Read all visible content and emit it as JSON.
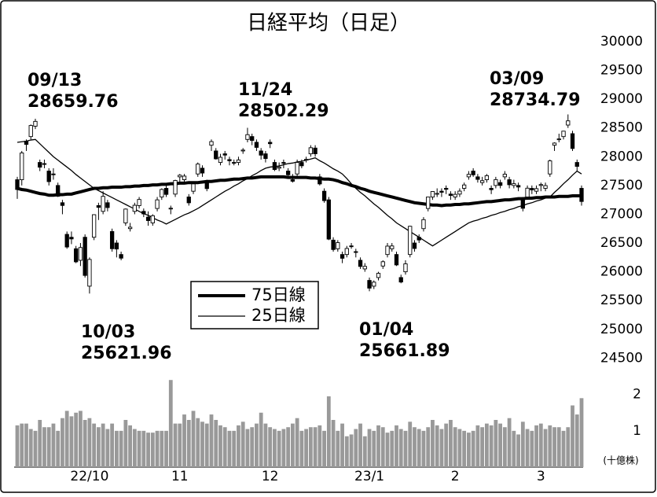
{
  "chart_data": {
    "type": "candlestick",
    "title": "日経平均（日足）",
    "categories": [
      null,
      null,
      null,
      null,
      null,
      null,
      null,
      null,
      null,
      null,
      null,
      null,
      null,
      null,
      null,
      null,
      "22/10",
      null,
      null,
      null,
      null,
      null,
      null,
      null,
      null,
      null,
      null,
      null,
      null,
      null,
      null,
      null,
      null,
      null,
      null,
      null,
      "11",
      null,
      null,
      null,
      null,
      null,
      null,
      null,
      null,
      null,
      null,
      null,
      null,
      null,
      null,
      null,
      null,
      null,
      null,
      null,
      "12",
      null,
      null,
      null,
      null,
      null,
      null,
      null,
      null,
      null,
      null,
      null,
      null,
      null,
      null,
      null,
      null,
      null,
      null,
      null,
      null,
      null,
      "23/1",
      null,
      null,
      null,
      null,
      null,
      null,
      null,
      null,
      null,
      null,
      null,
      null,
      null,
      null,
      null,
      null,
      null,
      null,
      "2",
      null,
      null,
      null,
      null,
      null,
      null,
      null,
      null,
      null,
      null,
      null,
      null,
      null,
      null,
      null,
      null,
      null,
      null,
      "3",
      null,
      null,
      null,
      null,
      null,
      null,
      null,
      null,
      null
    ],
    "open": [
      27600,
      27600,
      28270,
      28350,
      28530,
      27900,
      27880,
      27750,
      27700,
      27500,
      27200,
      26650,
      26600,
      26400,
      26200,
      26600,
      25750,
      26600,
      27150,
      27050,
      27200,
      26700,
      26500,
      26300,
      26850,
      26750,
      27050,
      27150,
      27050,
      26950,
      26850,
      27100,
      27300,
      27450,
      27100,
      27350,
      27650,
      27600,
      27300,
      27400,
      27700,
      27800,
      27550,
      28200,
      28100,
      27900,
      28050,
      27950,
      27900,
      27900,
      28100,
      28300,
      28350,
      28250,
      28100,
      28050,
      28250,
      27900,
      27800,
      27900,
      27750,
      27600,
      27700,
      27900,
      27950,
      28050,
      28150,
      27650,
      27400,
      27250,
      26550,
      26400,
      26300,
      26300,
      26450,
      26350,
      26200,
      26050,
      25850,
      25750,
      25900,
      26100,
      26300,
      26400,
      26300,
      25900,
      26000,
      26300,
      26500,
      26600,
      26750,
      27100,
      27300,
      27350,
      27400,
      27450,
      27350,
      27300,
      27350,
      27450,
      27650,
      27750,
      27650,
      27550,
      27600,
      27450,
      27500,
      27550,
      27650,
      27600,
      27500,
      27500,
      27250,
      27300,
      27450,
      27400,
      27500,
      27450,
      27700,
      28200,
      28300,
      28350,
      28550,
      28400,
      27900,
      27450
    ],
    "high": [
      27650,
      28100,
      28300,
      28560,
      28659.76,
      27950,
      27950,
      27800,
      27800,
      27550,
      27250,
      26700,
      26700,
      26450,
      26500,
      26650,
      26250,
      27000,
      27200,
      27400,
      27250,
      26750,
      26550,
      26350,
      27100,
      26850,
      27200,
      27300,
      27100,
      27050,
      27000,
      27300,
      27450,
      27500,
      27150,
      27600,
      27700,
      27700,
      27350,
      27550,
      27900,
      27850,
      27600,
      28300,
      28150,
      28050,
      28100,
      28000,
      27950,
      28000,
      28150,
      28502.29,
      28400,
      28300,
      28150,
      28100,
      28300,
      27950,
      27900,
      27950,
      27800,
      27700,
      27950,
      27950,
      28000,
      28200,
      28200,
      27700,
      27450,
      27300,
      26600,
      26550,
      26350,
      26450,
      26500,
      26400,
      26250,
      26150,
      25900,
      25850,
      26000,
      26200,
      26500,
      26500,
      26350,
      25950,
      26200,
      26800,
      26550,
      26650,
      26950,
      27300,
      27400,
      27450,
      27450,
      27500,
      27400,
      27400,
      27450,
      27550,
      27750,
      27800,
      27700,
      27650,
      27700,
      27500,
      27650,
      27600,
      27750,
      27650,
      27600,
      27550,
      27300,
      27500,
      27500,
      27500,
      27550,
      27550,
      27950,
      28250,
      28400,
      28450,
      28734.79,
      28450,
      27950,
      27500
    ],
    "low": [
      27268,
      27500,
      28100,
      28300,
      28480,
      27750,
      27800,
      27500,
      27600,
      27300,
      27000,
      26400,
      26480,
      26150,
      26100,
      25900,
      25621.96,
      26550,
      26900,
      27000,
      27050,
      26350,
      26250,
      26200,
      26800,
      26700,
      27000,
      27100,
      26950,
      26800,
      26800,
      27050,
      27250,
      27300,
      27000,
      27300,
      27550,
      27550,
      27150,
      27350,
      27650,
      27650,
      27400,
      28100,
      27950,
      27850,
      27950,
      27850,
      27850,
      27850,
      28050,
      28250,
      28200,
      28100,
      27950,
      27900,
      28150,
      27750,
      27750,
      27800,
      27650,
      27550,
      27650,
      27800,
      27900,
      28000,
      28000,
      27500,
      27200,
      26550,
      26350,
      26350,
      26150,
      26250,
      26400,
      26250,
      26050,
      26000,
      25661.89,
      25700,
      25850,
      26050,
      26250,
      26350,
      26100,
      25800,
      25950,
      26250,
      26350,
      26500,
      26700,
      27050,
      27250,
      27300,
      27300,
      27350,
      27250,
      27250,
      27300,
      27400,
      27600,
      27650,
      27550,
      27500,
      27550,
      27350,
      27450,
      27450,
      27600,
      27450,
      27450,
      27400,
      27050,
      27250,
      27350,
      27350,
      27400,
      27400,
      27650,
      28100,
      28250,
      28300,
      28500,
      28100,
      27750,
      27150
    ],
    "close": [
      27430,
      28065,
      28214,
      28542,
      28614,
      27818,
      27875,
      27567,
      27688,
      27313,
      27153,
      26431,
      26571,
      26173,
      26422,
      25937,
      26215,
      26992,
      27120,
      27311,
      27116,
      26401,
      26396,
      26237,
      27090,
      26775,
      27156,
      27257,
      27006,
      26890,
      26974,
      27250,
      27431,
      27345,
      27105,
      27587,
      27678,
      27663,
      27199,
      27527,
      27872,
      27716,
      27446,
      28263,
      27963,
      27990,
      28028,
      27930,
      27899,
      27944,
      28115,
      28383,
      28283,
      28162,
      28027,
      27968,
      28226,
      27777,
      27820,
      27885,
      27686,
      27574,
      27901,
      27842,
      27954,
      28156,
      28051,
      27527,
      27237,
      26568,
      26387,
      26507,
      26235,
      26405,
      26447,
      26340,
      26093,
      26094,
      25716,
      25820,
      25973,
      26175,
      26446,
      26449,
      26119,
      25822,
      26138,
      26791,
      26405,
      26553,
      26906,
      27299,
      27395,
      27362,
      27382,
      27433,
      27327,
      27346,
      27402,
      27509,
      27693,
      27685,
      27606,
      27584,
      27670,
      27427,
      27602,
      27501,
      27696,
      27513,
      27531,
      27473,
      27104,
      27453,
      27423,
      27445,
      27516,
      27498,
      27927,
      28237,
      28309,
      28444,
      28623,
      28143,
      27832,
      27222
    ],
    "series": [
      {
        "name": "75日線",
        "color": "#000000",
        "width": 4,
        "values": [
          27450,
          27430,
          27420,
          27400,
          27380,
          27360,
          27350,
          27330,
          27330,
          27340,
          27340,
          27350,
          27350,
          27370,
          27390,
          27410,
          27430,
          27450,
          27450,
          27460,
          27460,
          27470,
          27470,
          27470,
          27480,
          27480,
          27490,
          27490,
          27500,
          27500,
          27510,
          27510,
          27520,
          27520,
          27530,
          27530,
          27540,
          27540,
          27550,
          27550,
          27550,
          27560,
          27570,
          27570,
          27580,
          27590,
          27590,
          27600,
          27610,
          27610,
          27620,
          27630,
          27630,
          27640,
          27650,
          27650,
          27650,
          27650,
          27650,
          27650,
          27640,
          27640,
          27640,
          27640,
          27640,
          27630,
          27630,
          27620,
          27610,
          27610,
          27600,
          27580,
          27550,
          27530,
          27500,
          27480,
          27450,
          27430,
          27400,
          27380,
          27360,
          27340,
          27320,
          27300,
          27280,
          27260,
          27240,
          27220,
          27200,
          27190,
          27180,
          27170,
          27160,
          27160,
          27150,
          27160,
          27160,
          27170,
          27170,
          27180,
          27180,
          27190,
          27200,
          27210,
          27220,
          27220,
          27230,
          27240,
          27250,
          27250,
          27260,
          27270,
          27270,
          27280,
          27280,
          27290,
          27290,
          27300,
          27300,
          27300,
          27310,
          27310,
          27310,
          27320,
          27320,
          27320
        ]
      },
      {
        "name": "25日線",
        "color": "#000000",
        "width": 1.3,
        "values": [
          28250,
          28260,
          28270,
          28290,
          28300,
          28225,
          28150,
          28075,
          28000,
          27940,
          27880,
          27820,
          27760,
          27690,
          27630,
          27570,
          27510,
          27450,
          27410,
          27370,
          27330,
          27290,
          27250,
          27210,
          27170,
          27130,
          27090,
          27050,
          27010,
          26980,
          26940,
          26900,
          26870,
          26830,
          26870,
          26910,
          26950,
          26990,
          27020,
          27060,
          27100,
          27150,
          27200,
          27250,
          27300,
          27350,
          27400,
          27440,
          27490,
          27530,
          27580,
          27620,
          27670,
          27710,
          27760,
          27800,
          27820,
          27830,
          27840,
          27860,
          27880,
          27890,
          27910,
          27920,
          27940,
          27960,
          27980,
          27930,
          27890,
          27840,
          27790,
          27750,
          27700,
          27620,
          27530,
          27450,
          27380,
          27320,
          27250,
          27180,
          27120,
          27050,
          26980,
          26920,
          26850,
          26800,
          26750,
          26700,
          26650,
          26600,
          26550,
          26500,
          26450,
          26500,
          26550,
          26600,
          26650,
          26700,
          26750,
          26800,
          26850,
          26880,
          26900,
          26930,
          26950,
          26980,
          27000,
          27030,
          27050,
          27080,
          27100,
          27130,
          27150,
          27180,
          27200,
          27230,
          27250,
          27280,
          27300,
          27380,
          27450,
          27530,
          27600,
          27680,
          27750,
          27700
        ]
      }
    ],
    "ylim": [
      24300,
      30450
    ],
    "yticks": [
      24500,
      25000,
      25500,
      26000,
      26500,
      27000,
      27500,
      28000,
      28500,
      29000,
      29500,
      30000
    ],
    "volume": {
      "unit": "(十億株)",
      "color": "#999999",
      "ylim": [
        0,
        2.6
      ],
      "yticks": [
        1,
        2
      ],
      "values": [
        1.15,
        1.2,
        1.2,
        1.05,
        1.0,
        1.3,
        1.1,
        1.1,
        1.2,
        1.0,
        1.35,
        1.55,
        1.4,
        1.5,
        1.55,
        1.3,
        1.35,
        1.2,
        1.1,
        1.2,
        1.05,
        1.2,
        1.0,
        1.0,
        1.3,
        1.15,
        1.05,
        1.0,
        1.0,
        0.95,
        0.95,
        1.0,
        1.0,
        1.0,
        2.4,
        1.2,
        1.2,
        1.45,
        1.3,
        1.55,
        1.35,
        1.25,
        1.2,
        1.45,
        1.3,
        1.15,
        1.1,
        1.0,
        1.0,
        1.15,
        1.25,
        1.05,
        1.1,
        1.2,
        1.5,
        1.2,
        1.1,
        1.05,
        1.0,
        1.05,
        1.1,
        1.2,
        1.35,
        1.0,
        1.05,
        1.1,
        1.1,
        1.15,
        1.0,
        1.95,
        1.3,
        1.0,
        1.2,
        0.85,
        0.9,
        1.05,
        1.2,
        0.85,
        1.05,
        1.0,
        1.15,
        1.1,
        0.95,
        1.0,
        1.15,
        1.05,
        1.0,
        1.25,
        1.1,
        1.05,
        1.0,
        1.1,
        1.3,
        1.15,
        1.05,
        1.2,
        1.3,
        1.1,
        1.05,
        1.0,
        0.95,
        1.0,
        1.15,
        1.1,
        1.2,
        1.15,
        1.3,
        1.2,
        1.1,
        1.35,
        1.0,
        0.9,
        1.25,
        1.05,
        1.0,
        1.15,
        1.2,
        1.05,
        1.15,
        1.1,
        1.1,
        1.0,
        1.1,
        1.7,
        1.45,
        1.9
      ]
    },
    "annotations": [
      {
        "label": "09/13",
        "value": 28659.76
      },
      {
        "label": "10/03",
        "value": 25621.96
      },
      {
        "label": "11/24",
        "value": 28502.29
      },
      {
        "label": "01/04",
        "value": 25661.89
      },
      {
        "label": "03/09",
        "value": 28734.79
      }
    ]
  }
}
